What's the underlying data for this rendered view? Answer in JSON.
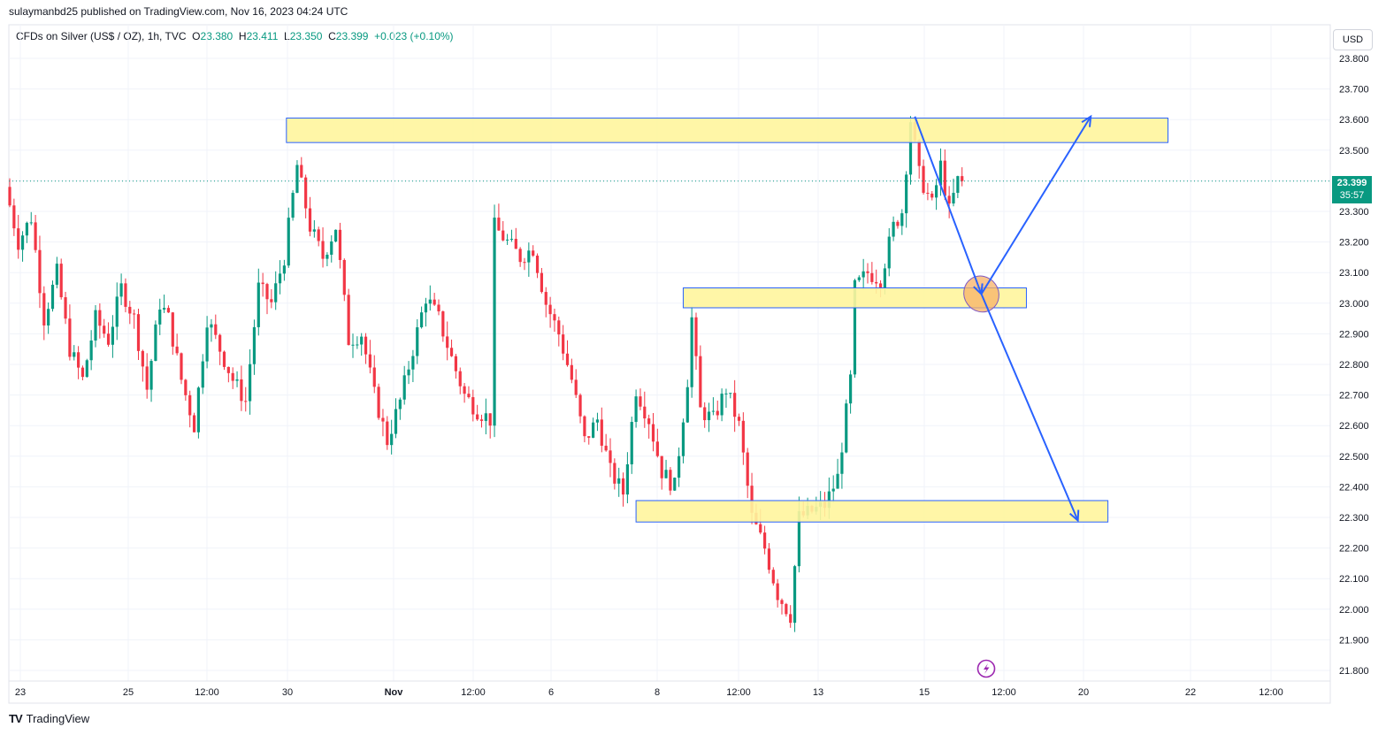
{
  "header": {
    "publisher_line": "sulaymanbd25 published on TradingView.com, Nov 16, 2023 04:24 UTC"
  },
  "legend": {
    "symbol": "CFDs on Silver (US$ / OZ), 1h, TVC",
    "open_label": "O",
    "open": "23.380",
    "high_label": "H",
    "high": "23.411",
    "low_label": "L",
    "low": "23.350",
    "close_label": "C",
    "close": "23.399",
    "change": "+0.023 (+0.10%)"
  },
  "currency_button": "USD",
  "price_tag": {
    "price": "23.399",
    "countdown": "35:57"
  },
  "footer": {
    "brand": "TradingView",
    "logo_text": "TV"
  },
  "colors": {
    "up": "#089981",
    "down": "#f23645",
    "zone_fill": "#fff59d",
    "zone_border": "#2962ff",
    "arrow": "#2962ff",
    "ellipse_fill": "#f7b267",
    "ellipse_border": "#7e57c2",
    "last_price_line": "#089981"
  },
  "chart_data": {
    "type": "candlestick",
    "interval": "1h",
    "ylim": [
      21.78,
      23.84
    ],
    "y_ticks": [
      "23.800",
      "23.700",
      "23.600",
      "23.500",
      "23.400",
      "23.300",
      "23.200",
      "23.100",
      "23.000",
      "22.900",
      "22.800",
      "22.700",
      "22.600",
      "22.500",
      "22.400",
      "22.300",
      "22.200",
      "22.100",
      "22.000",
      "21.900",
      "21.800"
    ],
    "x_ticks": [
      "23",
      "25",
      "12:00",
      "30",
      "Nov",
      "12:00",
      "6",
      "8",
      "12:00",
      "13",
      "15",
      "12:00",
      "20",
      "22",
      "12:00"
    ],
    "last_price": 23.399,
    "grid": true,
    "price_path": [
      [
        0,
        23.38
      ],
      [
        3,
        23.2
      ],
      [
        6,
        23.28
      ],
      [
        9,
        22.95
      ],
      [
        12,
        23.1
      ],
      [
        15,
        22.85
      ],
      [
        18,
        22.75
      ],
      [
        21,
        22.95
      ],
      [
        24,
        22.88
      ],
      [
        27,
        23.05
      ],
      [
        30,
        22.95
      ],
      [
        33,
        22.72
      ],
      [
        36,
        23.0
      ],
      [
        38,
        22.95
      ],
      [
        41,
        22.75
      ],
      [
        44,
        22.6
      ],
      [
        47,
        22.95
      ],
      [
        50,
        22.85
      ],
      [
        53,
        22.75
      ],
      [
        56,
        22.68
      ],
      [
        59,
        23.05
      ],
      [
        62,
        23.0
      ],
      [
        65,
        23.15
      ],
      [
        66,
        23.25
      ],
      [
        68,
        23.45
      ],
      [
        71,
        23.25
      ],
      [
        74,
        23.15
      ],
      [
        77,
        23.25
      ],
      [
        80,
        22.88
      ],
      [
        83,
        22.9
      ],
      [
        86,
        22.7
      ],
      [
        89,
        22.55
      ],
      [
        92,
        22.68
      ],
      [
        95,
        22.85
      ],
      [
        98,
        23.02
      ],
      [
        101,
        22.95
      ],
      [
        104,
        22.82
      ],
      [
        107,
        22.7
      ],
      [
        110,
        22.65
      ],
      [
        113,
        22.62
      ],
      [
        114,
        23.25
      ],
      [
        117,
        23.2
      ],
      [
        120,
        23.15
      ],
      [
        123,
        23.18
      ],
      [
        126,
        23.0
      ],
      [
        129,
        22.9
      ],
      [
        132,
        22.75
      ],
      [
        135,
        22.55
      ],
      [
        138,
        22.62
      ],
      [
        141,
        22.45
      ],
      [
        144,
        22.38
      ],
      [
        147,
        22.72
      ],
      [
        150,
        22.62
      ],
      [
        153,
        22.45
      ],
      [
        156,
        22.4
      ],
      [
        159,
        22.75
      ],
      [
        160,
        22.95
      ],
      [
        162,
        22.65
      ],
      [
        165,
        22.62
      ],
      [
        168,
        22.72
      ],
      [
        171,
        22.6
      ],
      [
        174,
        22.3
      ],
      [
        177,
        22.2
      ],
      [
        180,
        22.05
      ],
      [
        183,
        21.98
      ],
      [
        185,
        22.3
      ],
      [
        188,
        22.32
      ],
      [
        191,
        22.34
      ],
      [
        194,
        22.43
      ],
      [
        197,
        22.75
      ],
      [
        198,
        23.05
      ],
      [
        201,
        23.1
      ],
      [
        204,
        23.08
      ],
      [
        207,
        23.25
      ],
      [
        209,
        23.3
      ],
      [
        211,
        23.6
      ],
      [
        213,
        23.42
      ],
      [
        216,
        23.32
      ],
      [
        218,
        23.45
      ],
      [
        220,
        23.3
      ],
      [
        222,
        23.4
      ]
    ],
    "zones": [
      {
        "t_start": 64.5,
        "t_end": 270,
        "y_low": 23.525,
        "y_high": 23.605
      },
      {
        "t_start": 157,
        "t_end": 237,
        "y_low": 22.985,
        "y_high": 23.05
      },
      {
        "t_start": 146,
        "t_end": 256,
        "y_low": 22.285,
        "y_high": 22.355
      }
    ],
    "arrows": [
      {
        "from": [
          211,
          23.61
        ],
        "to": [
          226.5,
          23.03
        ]
      },
      {
        "from": [
          226.5,
          23.03
        ],
        "to": [
          252,
          23.61
        ]
      },
      {
        "from": [
          226.5,
          23.03
        ],
        "to": [
          249,
          22.29
        ]
      }
    ],
    "ellipse": {
      "t": 226.5,
      "y": 23.03,
      "rt": 4,
      "ry": 0.06
    }
  }
}
